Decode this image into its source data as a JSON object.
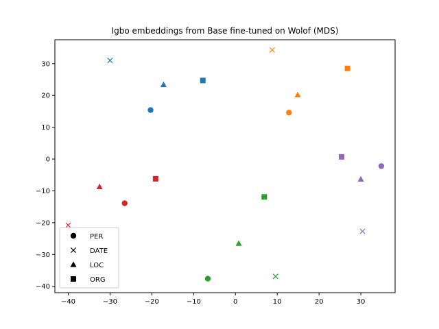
{
  "chart_data": {
    "type": "scatter",
    "title": "Igbo embeddings from Base fine-tuned on Wolof (MDS)",
    "xlabel": "",
    "ylabel": "",
    "xlim": [
      -43.2,
      38.2
    ],
    "ylim": [
      -42.0,
      37.5
    ],
    "xticks": [
      -40,
      -30,
      -20,
      -10,
      0,
      10,
      20,
      30
    ],
    "yticks": [
      -40,
      -30,
      -20,
      -10,
      0,
      10,
      20,
      30
    ],
    "grid": false,
    "legend": {
      "placement": "lower-left",
      "entries": [
        {
          "label": "PER",
          "marker": "circle"
        },
        {
          "label": "DATE",
          "marker": "x"
        },
        {
          "label": "LOC",
          "marker": "triangle"
        },
        {
          "label": "ORG",
          "marker": "square"
        }
      ]
    },
    "colors": [
      "#1f77b4",
      "#ff7f0e",
      "#2ca02c",
      "#d62728",
      "#9467bd"
    ],
    "points": [
      {
        "x": -20.3,
        "y": 15.4,
        "marker": "circle",
        "color": "#1f77b4"
      },
      {
        "x": -30.0,
        "y": 31.0,
        "marker": "x",
        "color": "#1f77b4"
      },
      {
        "x": -17.2,
        "y": 23.4,
        "marker": "triangle",
        "color": "#1f77b4"
      },
      {
        "x": -7.8,
        "y": 24.7,
        "marker": "square",
        "color": "#1f77b4"
      },
      {
        "x": 12.8,
        "y": 14.6,
        "marker": "circle",
        "color": "#ff7f0e"
      },
      {
        "x": 8.8,
        "y": 34.3,
        "marker": "x",
        "color": "#ff7f0e"
      },
      {
        "x": 14.9,
        "y": 20.2,
        "marker": "triangle",
        "color": "#ff7f0e"
      },
      {
        "x": 26.8,
        "y": 28.5,
        "marker": "square",
        "color": "#ff7f0e"
      },
      {
        "x": -6.6,
        "y": -37.6,
        "marker": "circle",
        "color": "#2ca02c"
      },
      {
        "x": 9.6,
        "y": -36.9,
        "marker": "x",
        "color": "#2ca02c"
      },
      {
        "x": 0.8,
        "y": -26.5,
        "marker": "triangle",
        "color": "#2ca02c"
      },
      {
        "x": 6.9,
        "y": -11.9,
        "marker": "square",
        "color": "#2ca02c"
      },
      {
        "x": -26.5,
        "y": -13.9,
        "marker": "circle",
        "color": "#d62728"
      },
      {
        "x": -40.0,
        "y": -20.8,
        "marker": "x",
        "color": "#d62728"
      },
      {
        "x": -32.5,
        "y": -8.7,
        "marker": "triangle",
        "color": "#d62728"
      },
      {
        "x": -19.1,
        "y": -6.2,
        "marker": "square",
        "color": "#d62728"
      },
      {
        "x": 34.9,
        "y": -2.2,
        "marker": "circle",
        "color": "#9467bd"
      },
      {
        "x": 30.4,
        "y": -22.7,
        "marker": "x",
        "color": "#9467bd"
      },
      {
        "x": 30.0,
        "y": -6.3,
        "marker": "triangle",
        "color": "#9467bd"
      },
      {
        "x": 25.4,
        "y": 0.7,
        "marker": "square",
        "color": "#9467bd"
      }
    ]
  }
}
